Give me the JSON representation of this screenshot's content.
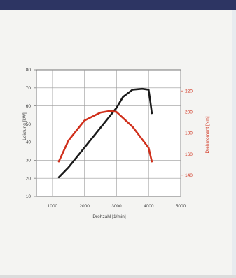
{
  "chart_data": {
    "type": "line",
    "title": "",
    "xlabel": "Drehzahl [1/min]",
    "ylabel_left": "Leistung [kW]",
    "ylabel_right": "Drehmoment [Nm]",
    "xlim": [
      500,
      5000
    ],
    "ylim_left": [
      10,
      80
    ],
    "ylim_right": [
      120,
      240
    ],
    "x_ticks": [
      1000,
      2000,
      3000,
      4000,
      5000
    ],
    "y_ticks_left": [
      10,
      20,
      30,
      40,
      50,
      60,
      70,
      80
    ],
    "y_ticks_right": [
      140,
      160,
      180,
      200,
      220
    ],
    "grid": true,
    "series": [
      {
        "axis": "left",
        "color": "#1a1a1a",
        "x": [
          1200,
          1500,
          2000,
          2500,
          3000,
          3200,
          3500,
          3800,
          4000,
          4050,
          4100
        ],
        "y": [
          20.5,
          26,
          37,
          48,
          59,
          65,
          69,
          69.5,
          69,
          63,
          56
        ]
      },
      {
        "axis": "right",
        "color": "#d0301c",
        "x": [
          1200,
          1500,
          2000,
          2500,
          2800,
          3000,
          3500,
          4000,
          4100
        ],
        "y": [
          153,
          173,
          192,
          199.5,
          201,
          200,
          186,
          166,
          153
        ]
      }
    ]
  }
}
